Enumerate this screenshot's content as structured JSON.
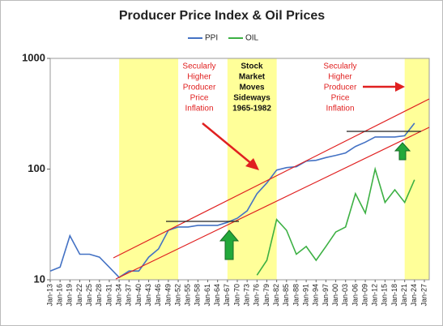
{
  "chart_data": {
    "type": "line",
    "title": "Producer Price Index & Oil Prices",
    "categories": [
      "Jan-13",
      "Jan-16",
      "Jan-19",
      "Jan-22",
      "Jan-25",
      "Jan-28",
      "Jan-31",
      "Jan-34",
      "Jan-37",
      "Jan-40",
      "Jan-43",
      "Jan-46",
      "Jan-49",
      "Jan-52",
      "Jan-55",
      "Jan-58",
      "Jan-61",
      "Jan-64",
      "Jan-67",
      "Jan-70",
      "Jan-73",
      "Jan-76",
      "Jan-79",
      "Jan-82",
      "Jan-85",
      "Jan-88",
      "Jan-91",
      "Jan-94",
      "Jan-97",
      "Jan-00",
      "Jan-03",
      "Jan-06",
      "Jan-09",
      "Jan-12",
      "Jan-15",
      "Jan-18",
      "Jan-21",
      "Jan-24",
      "Jan-27"
    ],
    "series": [
      {
        "name": "PPI",
        "color": "#4472c4",
        "values": [
          12,
          13,
          25,
          17,
          17,
          16,
          13,
          10.5,
          12,
          12,
          16,
          19,
          28,
          30,
          30,
          31,
          31,
          31,
          33,
          36,
          42,
          60,
          75,
          98,
          103,
          105,
          118,
          120,
          127,
          133,
          140,
          160,
          175,
          195,
          195,
          195,
          200,
          260,
          null
        ]
      },
      {
        "name": "OIL",
        "color": "#3cb043",
        "values": [
          null,
          null,
          null,
          null,
          null,
          null,
          null,
          null,
          null,
          null,
          null,
          null,
          null,
          null,
          null,
          null,
          null,
          null,
          null,
          null,
          null,
          11,
          15,
          35,
          28,
          17,
          20,
          15,
          20,
          27,
          30,
          60,
          40,
          100,
          50,
          65,
          50,
          80,
          null
        ]
      }
    ],
    "ylim": [
      10,
      1000
    ],
    "yticks": [
      10,
      100,
      1000
    ],
    "log_scale": true,
    "legend": "top",
    "shaded_periods": [
      [
        "Jan-34",
        "Jan-52"
      ],
      [
        "Jan-67",
        "Jan-82"
      ],
      [
        "Jan-21",
        "Jan-27"
      ]
    ],
    "shade_color": "#ffff99",
    "annotations": [
      {
        "lines": [
          "Secularly",
          "Higher",
          "Producer",
          "Price",
          "Inflation"
        ],
        "color": "#e02020"
      },
      {
        "lines": [
          "Stock",
          "Market",
          "Moves",
          "Sideways",
          "1965-1982"
        ],
        "color": "#111111"
      },
      {
        "lines": [
          "Secularly",
          "Higher",
          "Producer",
          "Price",
          "Inflation"
        ],
        "color": "#e02020"
      }
    ]
  }
}
